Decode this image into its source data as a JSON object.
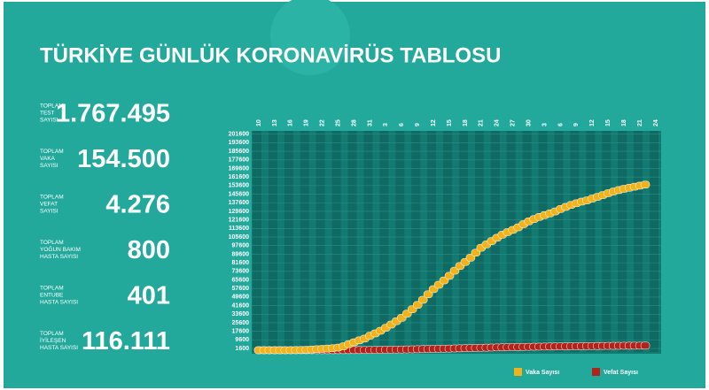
{
  "header": {
    "title": "TÜRKİYE GÜNLÜK KORONAVİRÜS TABLOSU"
  },
  "stats": [
    {
      "label": [
        "TOPLAM",
        "TEST",
        "SAYISI"
      ],
      "value": "1.767.495"
    },
    {
      "label": [
        "TOPLAM",
        "VAKA",
        "SAYISI"
      ],
      "value": "154.500"
    },
    {
      "label": [
        "TOPLAM",
        "VEFAT",
        "SAYISI"
      ],
      "value": "4.276"
    },
    {
      "label": [
        "TOPLAM",
        "YOĞUN BAKIM",
        "HASTA SAYISI"
      ],
      "value": "800"
    },
    {
      "label": [
        "TOPLAM",
        "ENTUBE",
        "HASTA SAYISI"
      ],
      "value": "401"
    },
    {
      "label": [
        "TOPLAM",
        "İYİLEŞEN",
        "HASTA SAYISI"
      ],
      "value": "116.111"
    }
  ],
  "chart_data": {
    "type": "line",
    "categories": [
      "10",
      null,
      null,
      "13",
      null,
      null,
      "16",
      null,
      null,
      "19",
      null,
      null,
      "22",
      null,
      null,
      "25",
      null,
      null,
      "28",
      null,
      null,
      "31",
      null,
      null,
      "3",
      null,
      null,
      "6",
      null,
      null,
      "9",
      null,
      null,
      "12",
      null,
      null,
      "15",
      null,
      null,
      "18",
      null,
      null,
      "21",
      null,
      null,
      "24",
      null,
      null,
      "27",
      null,
      null,
      "30",
      null,
      null,
      "3",
      null,
      null,
      "6",
      null,
      null,
      "9",
      null,
      null,
      "12",
      null,
      null,
      "15",
      null,
      null,
      "18",
      null,
      null,
      "21",
      null,
      null,
      "24"
    ],
    "series": [
      {
        "name": "Vaka Sayısı",
        "color": "#f2b21b",
        "values": [
          0,
          1,
          1,
          5,
          6,
          18,
          47,
          98,
          191,
          359,
          670,
          947,
          1236,
          1529,
          1872,
          2433,
          3629,
          5698,
          7402,
          9217,
          10827,
          13531,
          15679,
          18135,
          20921,
          23934,
          27069,
          30217,
          34109,
          38226,
          42282,
          47029,
          52167,
          56956,
          61049,
          65111,
          69392,
          74193,
          78546,
          82329,
          86306,
          90980,
          95591,
          98674,
          101790,
          104912,
          107773,
          110130,
          112261,
          114653,
          117589,
          120204,
          122392,
          124375,
          126045,
          127659,
          129491,
          131744,
          133721,
          135569,
          137115,
          138657,
          139771,
          141475,
          143114,
          144749,
          146457,
          148067,
          149435,
          150593,
          151615,
          152587,
          153548,
          154500,
          null,
          null
        ]
      },
      {
        "name": "Vefat Sayısı",
        "color": "#b3221b",
        "values": [
          0,
          0,
          0,
          0,
          0,
          0,
          0,
          1,
          2,
          4,
          9,
          21,
          30,
          37,
          44,
          59,
          75,
          92,
          108,
          131,
          168,
          214,
          277,
          356,
          425,
          501,
          574,
          649,
          725,
          812,
          908,
          1006,
          1101,
          1198,
          1296,
          1403,
          1518,
          1643,
          1769,
          1890,
          2017,
          2140,
          2259,
          2376,
          2491,
          2600,
          2706,
          2805,
          2900,
          2992,
          3081,
          3174,
          3258,
          3336,
          3397,
          3461,
          3520,
          3584,
          3641,
          3689,
          3739,
          3786,
          3841,
          3894,
          3952,
          4007,
          4055,
          4096,
          4140,
          4171,
          4199,
          4222,
          4249,
          4276,
          null,
          null
        ]
      }
    ],
    "ylim": [
      0,
      203000
    ],
    "yticks": [
      1600,
      9600,
      17600,
      25600,
      33600,
      41600,
      49600,
      57600,
      65600,
      73600,
      81600,
      89600,
      97600,
      105600,
      113600,
      121600,
      129600,
      137600,
      145600,
      153600,
      161600,
      169600,
      177600,
      185600,
      193600,
      201600
    ],
    "grid": true
  }
}
